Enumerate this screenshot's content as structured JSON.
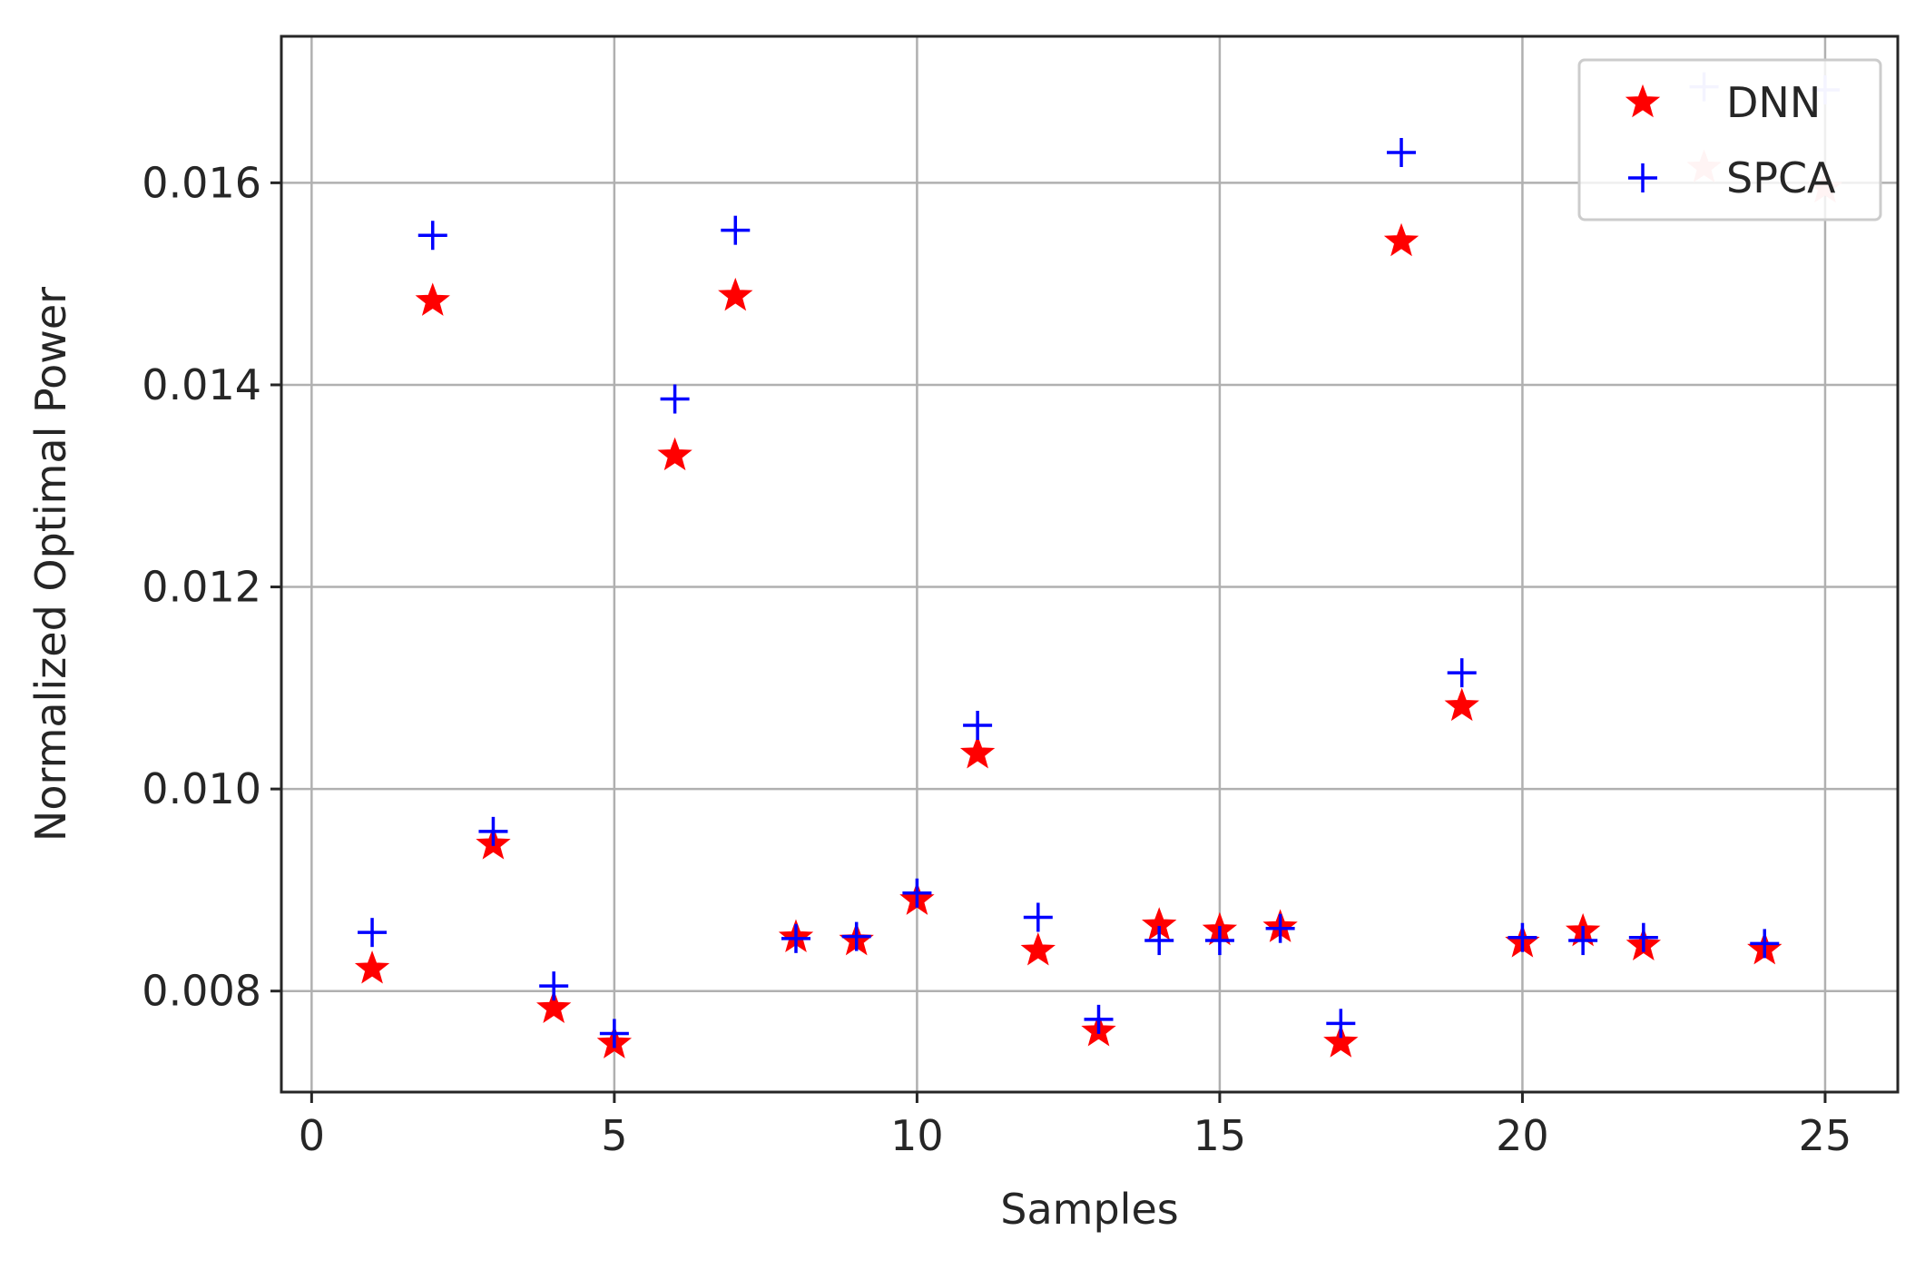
{
  "chart_data": {
    "type": "scatter",
    "xlabel": "Samples",
    "ylabel": "Normalized Optimal Power",
    "xlim": [
      -0.5,
      26.2
    ],
    "ylim": [
      0.007,
      0.01745
    ],
    "xticks": [
      0,
      5,
      10,
      15,
      20,
      25
    ],
    "xtick_labels": [
      "0",
      "5",
      "10",
      "15",
      "20",
      "25"
    ],
    "yticks": [
      0.008,
      0.01,
      0.012,
      0.014,
      0.016
    ],
    "ytick_labels": [
      "0.008",
      "0.010",
      "0.012",
      "0.014",
      "0.016"
    ],
    "grid": true,
    "legend_position": "top-right",
    "x": [
      1,
      2,
      3,
      4,
      5,
      6,
      7,
      8,
      9,
      10,
      11,
      12,
      13,
      14,
      15,
      16,
      17,
      18,
      19,
      20,
      21,
      22,
      24
    ],
    "series": [
      {
        "name": "DNN",
        "marker": "star",
        "color": "#ff0000",
        "values": [
          0.00822,
          0.01483,
          0.00945,
          0.00783,
          0.00748,
          0.0133,
          0.01488,
          0.00853,
          0.0085,
          0.0089,
          0.01035,
          0.0084,
          0.0076,
          0.00865,
          0.0086,
          0.00863,
          0.00749,
          0.01542,
          0.01082,
          0.00848,
          0.00859,
          0.00845,
          0.00841
        ]
      },
      {
        "name": "SPCA",
        "marker": "plus",
        "color": "#0000ff",
        "values": [
          0.00858,
          0.01548,
          0.00958,
          0.00805,
          0.00758,
          0.01386,
          0.01553,
          0.00852,
          0.00854,
          0.00897,
          0.01063,
          0.00873,
          0.00772,
          0.0085,
          0.0085,
          0.00862,
          0.00768,
          0.0163,
          0.01115,
          0.00853,
          0.0085,
          0.00853,
          0.00847
        ]
      }
    ],
    "faded_markers": [
      {
        "marker": "plus",
        "x": 23,
        "y": 0.01695,
        "color": "#c8c8ff"
      },
      {
        "marker": "star",
        "x": 23,
        "y": 0.01615,
        "color": "#ffc8c8"
      },
      {
        "marker": "plus",
        "x": 25,
        "y": 0.01692,
        "color": "#c8c8ff"
      },
      {
        "marker": "star",
        "x": 25,
        "y": 0.01595,
        "color": "#ffc8c8"
      }
    ]
  }
}
